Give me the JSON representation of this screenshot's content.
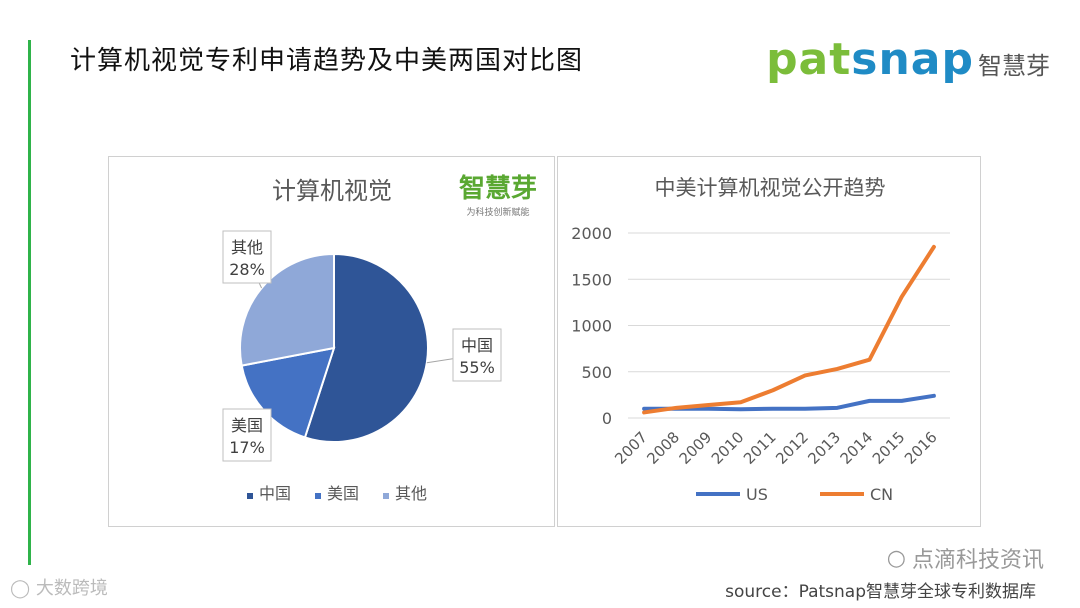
{
  "page": {
    "title": "计算机视觉专利申请趋势及中美两国对比图",
    "accent_color": "#2fb34a"
  },
  "logo": {
    "word_part1": "pat",
    "word_part2": "snap",
    "cn": "智慧芽"
  },
  "watermark": {
    "right_text": "点滴科技资讯",
    "bottom_left": "大数跨境",
    "source": "source：Patsnap智慧芽全球专利数据库"
  },
  "chart_data": [
    {
      "type": "pie",
      "title": "计算机视觉",
      "watermark": "智慧芽",
      "watermark_sub": "为科技创新赋能",
      "categories": [
        "中国",
        "美国",
        "其他"
      ],
      "values": [
        55,
        17,
        28
      ],
      "labels": [
        {
          "name": "中国",
          "value": "55%"
        },
        {
          "name": "美国",
          "value": "17%"
        },
        {
          "name": "其他",
          "value": "28%"
        }
      ],
      "colors": [
        "#2f5597",
        "#4472c4",
        "#8fa8d8"
      ],
      "legend": "bottom"
    },
    {
      "type": "line",
      "title": "中美计算机视觉公开趋势",
      "x": [
        "2007",
        "2008",
        "2009",
        "2010",
        "2011",
        "2012",
        "2013",
        "2014",
        "2015",
        "2016"
      ],
      "series": [
        {
          "name": "US",
          "color": "#4472c4",
          "values": [
            100,
            100,
            100,
            95,
            100,
            100,
            110,
            185,
            185,
            240
          ]
        },
        {
          "name": "CN",
          "color": "#ed7d31",
          "values": [
            60,
            110,
            140,
            170,
            300,
            460,
            530,
            630,
            1310,
            1850
          ]
        }
      ],
      "yticks": [
        "0",
        "500",
        "1000",
        "1500",
        "2000"
      ],
      "ylim": [
        0,
        2000
      ],
      "grid": true,
      "legend": "bottom"
    }
  ]
}
